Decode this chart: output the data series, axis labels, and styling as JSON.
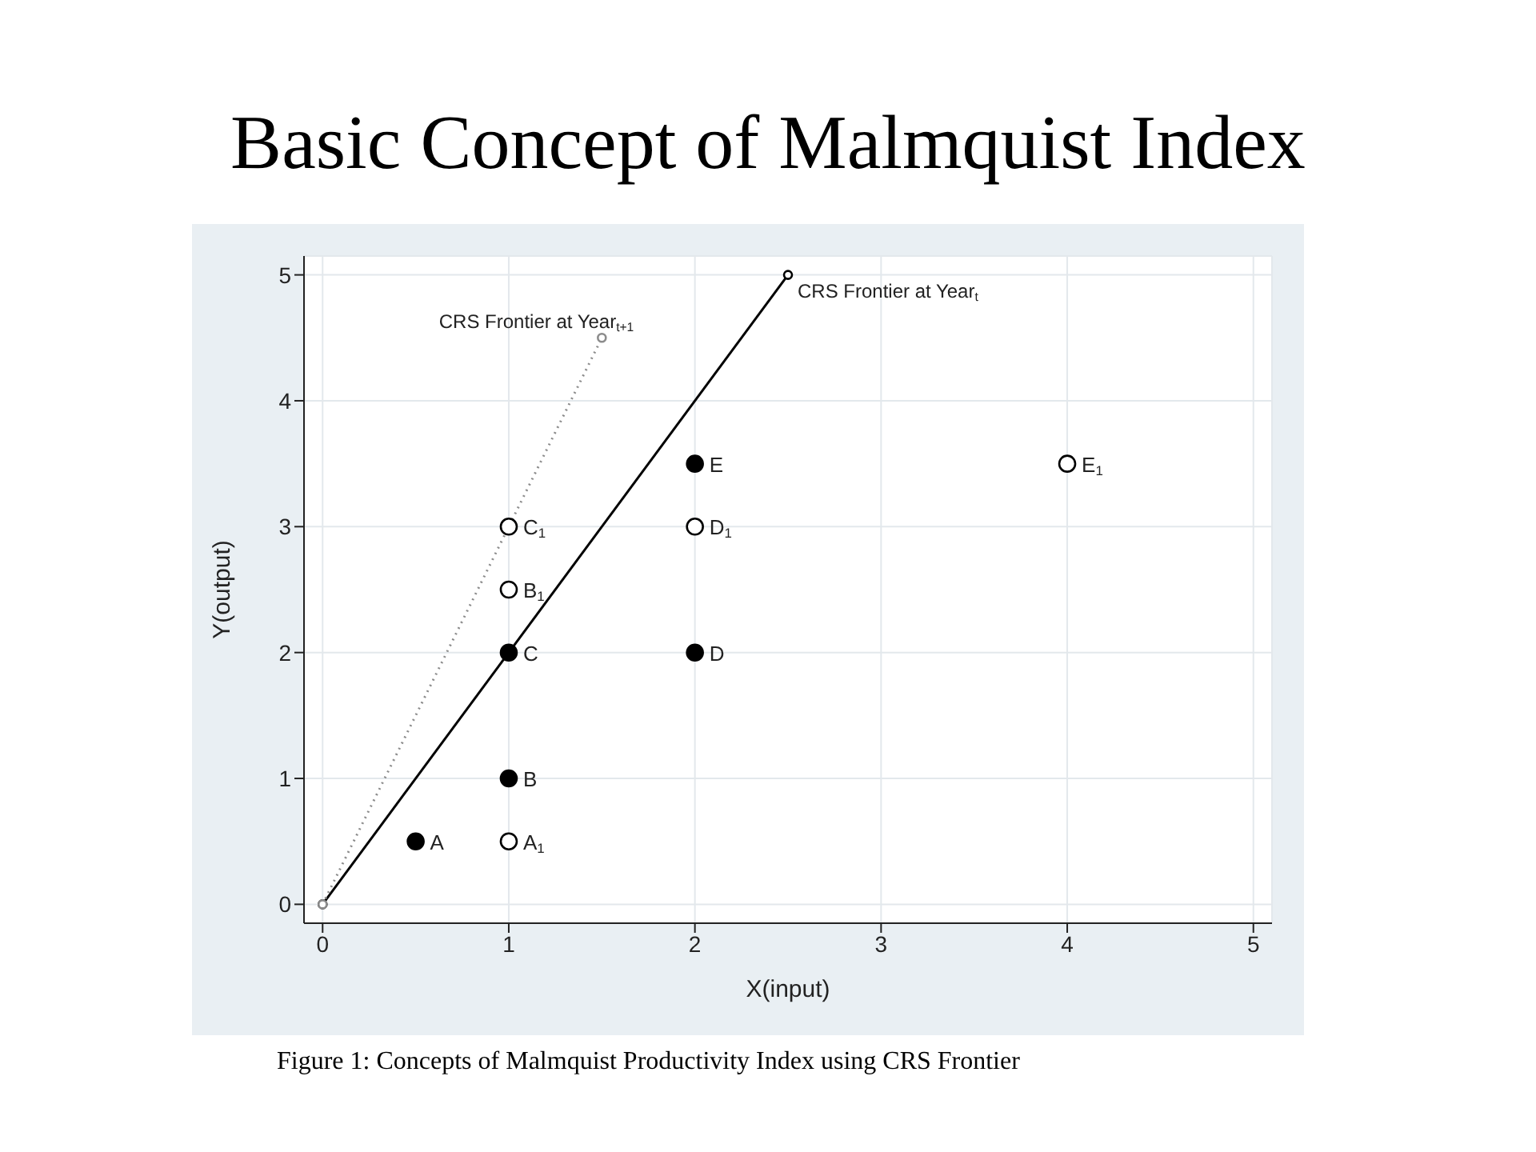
{
  "chart_data": {
    "type": "scatter",
    "title": "Basic Concept of Malmquist Index",
    "xlabel": "X(input)",
    "ylabel": "Y(output)",
    "xlim": [
      -0.1,
      5.1
    ],
    "ylim": [
      -0.15,
      5.15
    ],
    "xticks": [
      0,
      1,
      2,
      3,
      4,
      5
    ],
    "yticks": [
      0,
      1,
      2,
      3,
      4,
      5
    ],
    "grid": true,
    "legend": false,
    "marker": "circle",
    "series": [
      {
        "type": "line",
        "color": "#000000",
        "line_style": "solid",
        "x": [
          0,
          2.5
        ],
        "values": [
          0,
          5
        ]
      },
      {
        "type": "line",
        "color": "#8c8c8c",
        "line_style": "dotted",
        "x": [
          0,
          1.5
        ],
        "values": [
          0,
          4.5
        ]
      },
      {
        "color": "#000000",
        "x": [
          0.5,
          1,
          1,
          2,
          2
        ],
        "values": [
          0.5,
          1,
          2,
          2,
          3.5
        ]
      },
      {
        "color": "#ffffff",
        "x": [
          1,
          1,
          1,
          2,
          4
        ],
        "values": [
          0.5,
          2.5,
          3,
          3,
          3.5
        ]
      }
    ],
    "annotations": [
      {
        "text": "CRS Frontier at Year$_{t}$",
        "x": 2.5,
        "y": 5
      },
      {
        "text": "CRS Frontier at Year$_{t+1}$",
        "x": 1.5,
        "y": 4.5
      },
      {
        "text": "A",
        "x": 0.5,
        "y": 0.5
      },
      {
        "text": "B",
        "x": 1,
        "y": 1
      },
      {
        "text": "C",
        "x": 1,
        "y": 2
      },
      {
        "text": "D",
        "x": 2,
        "y": 2
      },
      {
        "text": "E",
        "x": 2,
        "y": 3.5
      },
      {
        "text": "A$_{1}$",
        "x": 1,
        "y": 0.5
      },
      {
        "text": "B$_{1}$",
        "x": 1,
        "y": 2.5
      },
      {
        "text": "C$_{1}$",
        "x": 1,
        "y": 3
      },
      {
        "text": "D$_{1}$",
        "x": 2,
        "y": 3
      },
      {
        "text": "E$_{1}$",
        "x": 4,
        "y": 3.5
      },
      "Figure 1:  Concepts of Malmquist Productivity Index using CRS Frontier"
    ]
  }
}
